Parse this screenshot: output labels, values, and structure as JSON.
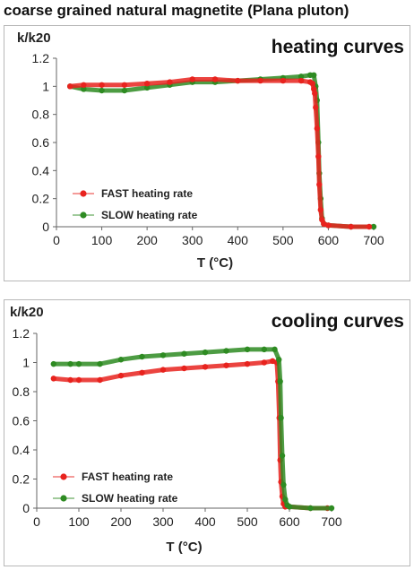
{
  "figure_title": "coarse grained natural magnetite (Plana pluton)",
  "colors": {
    "fast": "#e8231e",
    "slow": "#2e8b22"
  },
  "chart_data": [
    {
      "type": "scatter",
      "title": "heating curves",
      "ylabel": "k/k20",
      "xlabel": "T (°C)",
      "xlim": [
        0,
        700
      ],
      "ylim": [
        0,
        1.2
      ],
      "xticks": [
        "0",
        "100",
        "200",
        "300",
        "400",
        "500",
        "600",
        "700"
      ],
      "yticks": [
        "0",
        "0.2",
        "0.4",
        "0.6",
        "0.8",
        "1",
        "1.2"
      ],
      "grid": false,
      "legend_position": "lower-left",
      "series": [
        {
          "name": "FAST heating rate",
          "color": "#e8231e",
          "x": [
            30,
            60,
            100,
            150,
            200,
            250,
            300,
            350,
            400,
            450,
            500,
            540,
            560,
            565,
            568,
            570,
            572,
            575,
            578,
            580,
            583,
            586,
            590,
            600,
            650,
            690
          ],
          "y": [
            1.0,
            1.01,
            1.01,
            1.01,
            1.02,
            1.03,
            1.05,
            1.05,
            1.04,
            1.04,
            1.04,
            1.04,
            1.03,
            1.02,
            0.98,
            0.95,
            0.85,
            0.7,
            0.5,
            0.3,
            0.12,
            0.05,
            0.02,
            0.01,
            0.0,
            0.0
          ]
        },
        {
          "name": "SLOW heating rate",
          "color": "#2e8b22",
          "x": [
            30,
            60,
            100,
            150,
            200,
            250,
            300,
            350,
            400,
            450,
            500,
            540,
            560,
            568,
            572,
            575,
            578,
            580,
            583,
            586,
            590,
            600,
            650,
            700
          ],
          "y": [
            1.0,
            0.98,
            0.97,
            0.97,
            0.99,
            1.01,
            1.03,
            1.03,
            1.04,
            1.05,
            1.06,
            1.07,
            1.08,
            1.08,
            1.0,
            0.9,
            0.6,
            0.38,
            0.2,
            0.06,
            0.02,
            0.01,
            0.0,
            0.0
          ]
        }
      ]
    },
    {
      "type": "scatter",
      "title": "cooling curves",
      "ylabel": "k/k20",
      "xlabel": "T (°C)",
      "xlim": [
        0,
        700
      ],
      "ylim": [
        0,
        1.2
      ],
      "xticks": [
        "0",
        "100",
        "200",
        "300",
        "400",
        "500",
        "600",
        "700"
      ],
      "yticks": [
        "0",
        "0.2",
        "0.4",
        "0.6",
        "0.8",
        "1",
        "1.2"
      ],
      "grid": false,
      "legend_position": "lower-left",
      "series": [
        {
          "name": "FAST heating rate",
          "color": "#e8231e",
          "x": [
            40,
            80,
            100,
            150,
            200,
            250,
            300,
            350,
            400,
            450,
            500,
            540,
            560,
            570,
            573,
            576,
            578,
            580,
            583,
            586,
            590,
            600,
            650,
            690
          ],
          "y": [
            0.89,
            0.88,
            0.88,
            0.88,
            0.91,
            0.93,
            0.95,
            0.96,
            0.97,
            0.98,
            0.99,
            1.0,
            1.01,
            1.0,
            0.87,
            0.62,
            0.33,
            0.18,
            0.08,
            0.03,
            0.01,
            0.01,
            0.0,
            0.0
          ]
        },
        {
          "name": "SLOW heating rate",
          "color": "#2e8b22",
          "x": [
            40,
            80,
            100,
            150,
            200,
            250,
            300,
            350,
            400,
            450,
            500,
            540,
            565,
            575,
            578,
            580,
            583,
            586,
            590,
            595,
            600,
            650,
            700
          ],
          "y": [
            0.99,
            0.99,
            0.99,
            0.99,
            1.02,
            1.04,
            1.05,
            1.06,
            1.07,
            1.08,
            1.09,
            1.09,
            1.09,
            1.02,
            0.87,
            0.62,
            0.36,
            0.16,
            0.06,
            0.02,
            0.01,
            0.0,
            0.0
          ]
        }
      ]
    }
  ]
}
